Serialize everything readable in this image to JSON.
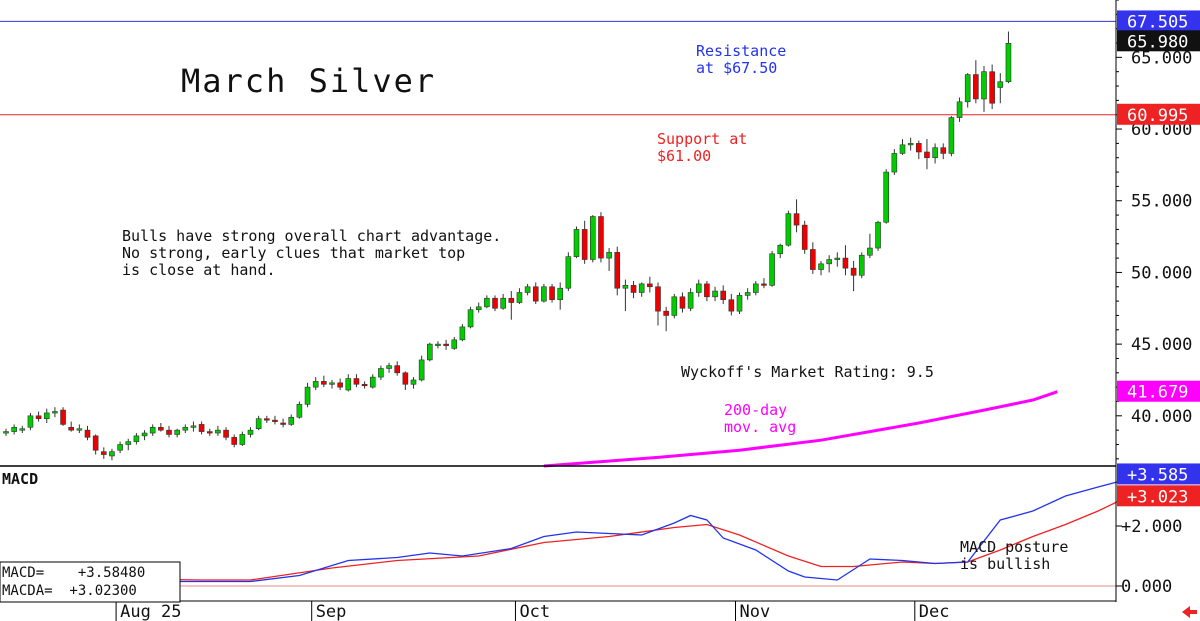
{
  "chart_data": {
    "type": "candlestick",
    "title": "March Silver",
    "annotations": {
      "resistance": [
        "Resistance",
        "at $67.50"
      ],
      "support": [
        "Support at",
        "$61.00"
      ],
      "commentary": [
        "Bulls have strong overall chart advantage.",
        "No strong, early clues that market top",
        "is close at hand."
      ],
      "rating": "Wyckoff's Market Rating: 9.5",
      "ma_label": [
        "200-day",
        "mov. avg"
      ],
      "macd_note": [
        "MACD posture",
        "is bullish"
      ]
    },
    "price_axis": {
      "ylim": [
        36.5,
        69
      ],
      "ticks": [
        "40.000",
        "45.000",
        "50.000",
        "55.000",
        "60.000",
        "65.000"
      ],
      "tick_values": [
        40,
        45,
        50,
        55,
        60,
        65
      ]
    },
    "levels": [
      {
        "label": "67.505",
        "value": 67.505,
        "color": "#3333cc"
      },
      {
        "label": "60.995",
        "value": 60.995,
        "color": "#ee2222"
      }
    ],
    "last_price": {
      "label": "65.980",
      "value": 65.98
    },
    "ma_value": {
      "label": "41.679",
      "value": 41.679,
      "color": "#ff00ff"
    },
    "x_labels": [
      "Aug 25",
      "Sep",
      "Oct",
      "Nov",
      "Dec"
    ],
    "x_label_bar_index": [
      14,
      38,
      63,
      90,
      112
    ],
    "candles": [
      [
        38.9,
        39.1,
        38.6,
        38.9
      ],
      [
        38.9,
        39.4,
        38.7,
        39.2
      ],
      [
        39.0,
        39.3,
        38.8,
        39.1
      ],
      [
        39.2,
        40.2,
        39.0,
        40.0
      ],
      [
        40.0,
        40.3,
        39.6,
        39.8
      ],
      [
        39.8,
        40.5,
        39.5,
        40.2
      ],
      [
        40.2,
        40.6,
        39.9,
        40.3
      ],
      [
        40.4,
        40.6,
        39.3,
        39.4
      ],
      [
        39.2,
        39.6,
        38.9,
        39.0
      ],
      [
        39.1,
        39.4,
        38.8,
        39.1
      ],
      [
        39.0,
        39.3,
        38.3,
        38.5
      ],
      [
        38.6,
        38.7,
        37.3,
        37.6
      ],
      [
        37.5,
        37.8,
        37.0,
        37.3
      ],
      [
        37.2,
        37.7,
        36.9,
        37.5
      ],
      [
        37.6,
        38.2,
        37.4,
        38.0
      ],
      [
        38.0,
        38.4,
        37.6,
        38.2
      ],
      [
        38.2,
        38.8,
        38.0,
        38.6
      ],
      [
        38.6,
        39.0,
        38.3,
        38.8
      ],
      [
        38.8,
        39.4,
        38.6,
        39.2
      ],
      [
        39.2,
        39.5,
        38.9,
        39.0
      ],
      [
        39.0,
        39.3,
        38.5,
        38.7
      ],
      [
        38.7,
        39.1,
        38.5,
        39.0
      ],
      [
        39.0,
        39.4,
        38.8,
        39.2
      ],
      [
        39.2,
        39.6,
        38.9,
        39.3
      ],
      [
        39.4,
        39.6,
        38.7,
        38.9
      ],
      [
        38.9,
        39.1,
        38.6,
        38.8
      ],
      [
        38.8,
        39.3,
        38.6,
        39.0
      ],
      [
        39.0,
        39.2,
        38.3,
        38.5
      ],
      [
        38.5,
        38.7,
        37.8,
        38.0
      ],
      [
        38.0,
        38.9,
        37.9,
        38.7
      ],
      [
        38.7,
        39.2,
        38.5,
        39.0
      ],
      [
        39.1,
        40.0,
        39.0,
        39.8
      ],
      [
        39.8,
        40.0,
        39.5,
        39.7
      ],
      [
        39.7,
        40.0,
        39.4,
        39.6
      ],
      [
        39.5,
        39.8,
        39.2,
        39.4
      ],
      [
        39.4,
        40.1,
        39.3,
        39.9
      ],
      [
        39.9,
        41.0,
        39.8,
        40.8
      ],
      [
        40.8,
        42.3,
        40.6,
        42.0
      ],
      [
        42.0,
        42.7,
        41.8,
        42.4
      ],
      [
        42.4,
        42.8,
        42.0,
        42.2
      ],
      [
        42.2,
        42.5,
        41.9,
        42.3
      ],
      [
        42.3,
        42.6,
        41.8,
        42.0
      ],
      [
        41.8,
        42.9,
        41.7,
        42.6
      ],
      [
        42.6,
        42.9,
        42.0,
        42.2
      ],
      [
        42.2,
        42.4,
        41.9,
        42.1
      ],
      [
        42.0,
        42.9,
        41.9,
        42.7
      ],
      [
        42.7,
        43.5,
        42.5,
        43.3
      ],
      [
        43.3,
        43.7,
        43.0,
        43.5
      ],
      [
        43.5,
        43.8,
        42.8,
        43.0
      ],
      [
        43.0,
        43.1,
        41.8,
        42.2
      ],
      [
        42.2,
        42.7,
        41.9,
        42.5
      ],
      [
        42.5,
        44.2,
        42.4,
        43.9
      ],
      [
        43.9,
        45.1,
        43.8,
        45.0
      ],
      [
        45.0,
        45.2,
        44.7,
        45.0
      ],
      [
        45.0,
        45.3,
        44.6,
        44.9
      ],
      [
        44.7,
        45.5,
        44.6,
        45.3
      ],
      [
        45.3,
        46.4,
        45.2,
        46.2
      ],
      [
        46.2,
        47.6,
        46.1,
        47.4
      ],
      [
        47.4,
        47.9,
        47.2,
        47.6
      ],
      [
        47.6,
        48.4,
        47.5,
        48.2
      ],
      [
        48.2,
        48.4,
        47.3,
        47.5
      ],
      [
        47.5,
        48.5,
        47.4,
        48.2
      ],
      [
        48.2,
        48.7,
        46.7,
        47.9
      ],
      [
        47.9,
        48.9,
        47.8,
        48.6
      ],
      [
        48.6,
        49.2,
        48.4,
        49.0
      ],
      [
        49.0,
        49.3,
        47.8,
        48.0
      ],
      [
        48.0,
        49.2,
        47.9,
        49.0
      ],
      [
        49.0,
        49.2,
        47.9,
        48.1
      ],
      [
        48.1,
        49.3,
        47.4,
        48.9
      ],
      [
        48.9,
        51.4,
        48.7,
        51.1
      ],
      [
        51.1,
        53.2,
        51.0,
        53.0
      ],
      [
        53.0,
        53.6,
        50.6,
        50.9
      ],
      [
        50.9,
        54.0,
        50.7,
        53.9
      ],
      [
        53.9,
        54.2,
        50.7,
        51.0
      ],
      [
        51.0,
        51.7,
        50.1,
        51.4
      ],
      [
        51.4,
        51.8,
        48.4,
        48.9
      ],
      [
        48.9,
        49.5,
        47.3,
        49.1
      ],
      [
        49.1,
        49.4,
        48.2,
        48.6
      ],
      [
        48.6,
        49.3,
        48.3,
        49.2
      ],
      [
        49.2,
        49.7,
        48.6,
        49.0
      ],
      [
        49.0,
        49.3,
        46.3,
        47.3
      ],
      [
        47.3,
        47.6,
        45.9,
        47.0
      ],
      [
        47.0,
        48.5,
        46.8,
        48.3
      ],
      [
        48.3,
        48.6,
        47.2,
        47.5
      ],
      [
        47.5,
        48.9,
        47.3,
        48.6
      ],
      [
        48.6,
        49.5,
        48.3,
        49.2
      ],
      [
        49.2,
        49.4,
        48.0,
        48.3
      ],
      [
        48.3,
        49.0,
        48.0,
        48.7
      ],
      [
        48.7,
        49.1,
        47.8,
        48.1
      ],
      [
        48.1,
        48.5,
        47.0,
        47.3
      ],
      [
        47.3,
        48.6,
        47.1,
        48.4
      ],
      [
        48.4,
        48.9,
        48.1,
        48.6
      ],
      [
        48.6,
        49.4,
        48.4,
        49.2
      ],
      [
        49.2,
        49.6,
        48.9,
        49.1
      ],
      [
        49.1,
        51.5,
        49.0,
        51.3
      ],
      [
        51.3,
        52.0,
        51.0,
        51.9
      ],
      [
        51.9,
        54.3,
        51.8,
        54.1
      ],
      [
        54.1,
        55.1,
        52.8,
        53.3
      ],
      [
        53.3,
        53.6,
        51.3,
        51.6
      ],
      [
        51.6,
        52.1,
        49.9,
        50.2
      ],
      [
        50.2,
        50.8,
        49.8,
        50.6
      ],
      [
        50.6,
        51.2,
        50.0,
        50.9
      ],
      [
        50.9,
        51.4,
        50.4,
        51.0
      ],
      [
        51.0,
        51.9,
        49.8,
        50.3
      ],
      [
        50.3,
        50.8,
        48.7,
        49.8
      ],
      [
        49.8,
        51.4,
        49.6,
        51.2
      ],
      [
        51.2,
        52.7,
        51.0,
        51.7
      ],
      [
        51.7,
        53.6,
        51.5,
        53.5
      ],
      [
        53.5,
        57.2,
        53.4,
        57.0
      ],
      [
        57.0,
        58.6,
        56.8,
        58.3
      ],
      [
        58.3,
        59.3,
        58.2,
        58.9
      ],
      [
        58.9,
        59.4,
        58.5,
        59.0
      ],
      [
        59.0,
        59.2,
        57.9,
        58.4
      ],
      [
        58.4,
        59.3,
        57.2,
        58.0
      ],
      [
        58.0,
        59.0,
        57.6,
        58.7
      ],
      [
        58.7,
        59.0,
        57.9,
        58.3
      ],
      [
        58.3,
        60.9,
        58.1,
        60.8
      ],
      [
        60.8,
        62.2,
        60.5,
        61.9
      ],
      [
        61.9,
        63.9,
        61.5,
        63.8
      ],
      [
        63.8,
        64.8,
        61.8,
        62.1
      ],
      [
        62.1,
        64.4,
        61.2,
        64.0
      ],
      [
        64.0,
        64.5,
        61.4,
        61.8
      ],
      [
        62.9,
        63.9,
        61.8,
        63.3
      ],
      [
        63.3,
        66.8,
        63.2,
        65.98
      ]
    ],
    "ma200": [
      [
        66,
        36.5
      ],
      [
        80,
        37.1
      ],
      [
        90,
        37.6
      ],
      [
        100,
        38.3
      ],
      [
        112,
        39.5
      ],
      [
        120,
        40.4
      ],
      [
        126,
        41.1
      ],
      [
        129,
        41.68
      ]
    ],
    "macd_panel": {
      "label": "MACD",
      "ylim": [
        -0.5,
        4.0
      ],
      "ticks": [
        "0.000",
        "+2.000"
      ],
      "tick_values": [
        0,
        2
      ],
      "macd_value": {
        "label": "+3.585",
        "value": 3.585,
        "color": "#3333ee"
      },
      "macda_value": {
        "label": "+3.023",
        "value": 3.023,
        "color": "#ee2222"
      },
      "readout": [
        "MACD=    +3.58480",
        "MACDA=  +3.02300"
      ],
      "macd": [
        [
          0,
          0.3
        ],
        [
          10,
          0.35
        ],
        [
          20,
          0.15
        ],
        [
          30,
          0.15
        ],
        [
          36,
          0.35
        ],
        [
          42,
          0.85
        ],
        [
          48,
          0.95
        ],
        [
          52,
          1.1
        ],
        [
          56,
          1.0
        ],
        [
          62,
          1.25
        ],
        [
          66,
          1.65
        ],
        [
          70,
          1.8
        ],
        [
          74,
          1.75
        ],
        [
          78,
          1.7
        ],
        [
          82,
          2.1
        ],
        [
          84,
          2.35
        ],
        [
          86,
          2.2
        ],
        [
          88,
          1.6
        ],
        [
          92,
          1.2
        ],
        [
          96,
          0.5
        ],
        [
          98,
          0.3
        ],
        [
          102,
          0.2
        ],
        [
          106,
          0.9
        ],
        [
          110,
          0.85
        ],
        [
          114,
          0.75
        ],
        [
          118,
          0.8
        ],
        [
          120,
          1.5
        ],
        [
          122,
          2.2
        ],
        [
          126,
          2.5
        ],
        [
          130,
          3.0
        ],
        [
          134,
          3.3
        ],
        [
          138,
          3.585
        ]
      ],
      "macda": [
        [
          0,
          0.25
        ],
        [
          12,
          0.25
        ],
        [
          24,
          0.2
        ],
        [
          30,
          0.2
        ],
        [
          40,
          0.6
        ],
        [
          48,
          0.85
        ],
        [
          58,
          1.0
        ],
        [
          66,
          1.45
        ],
        [
          74,
          1.65
        ],
        [
          82,
          1.95
        ],
        [
          86,
          2.05
        ],
        [
          90,
          1.7
        ],
        [
          96,
          1.0
        ],
        [
          100,
          0.65
        ],
        [
          104,
          0.65
        ],
        [
          110,
          0.8
        ],
        [
          114,
          0.75
        ],
        [
          118,
          0.8
        ],
        [
          122,
          1.2
        ],
        [
          126,
          1.65
        ],
        [
          130,
          2.05
        ],
        [
          134,
          2.5
        ],
        [
          138,
          3.023
        ]
      ]
    }
  }
}
